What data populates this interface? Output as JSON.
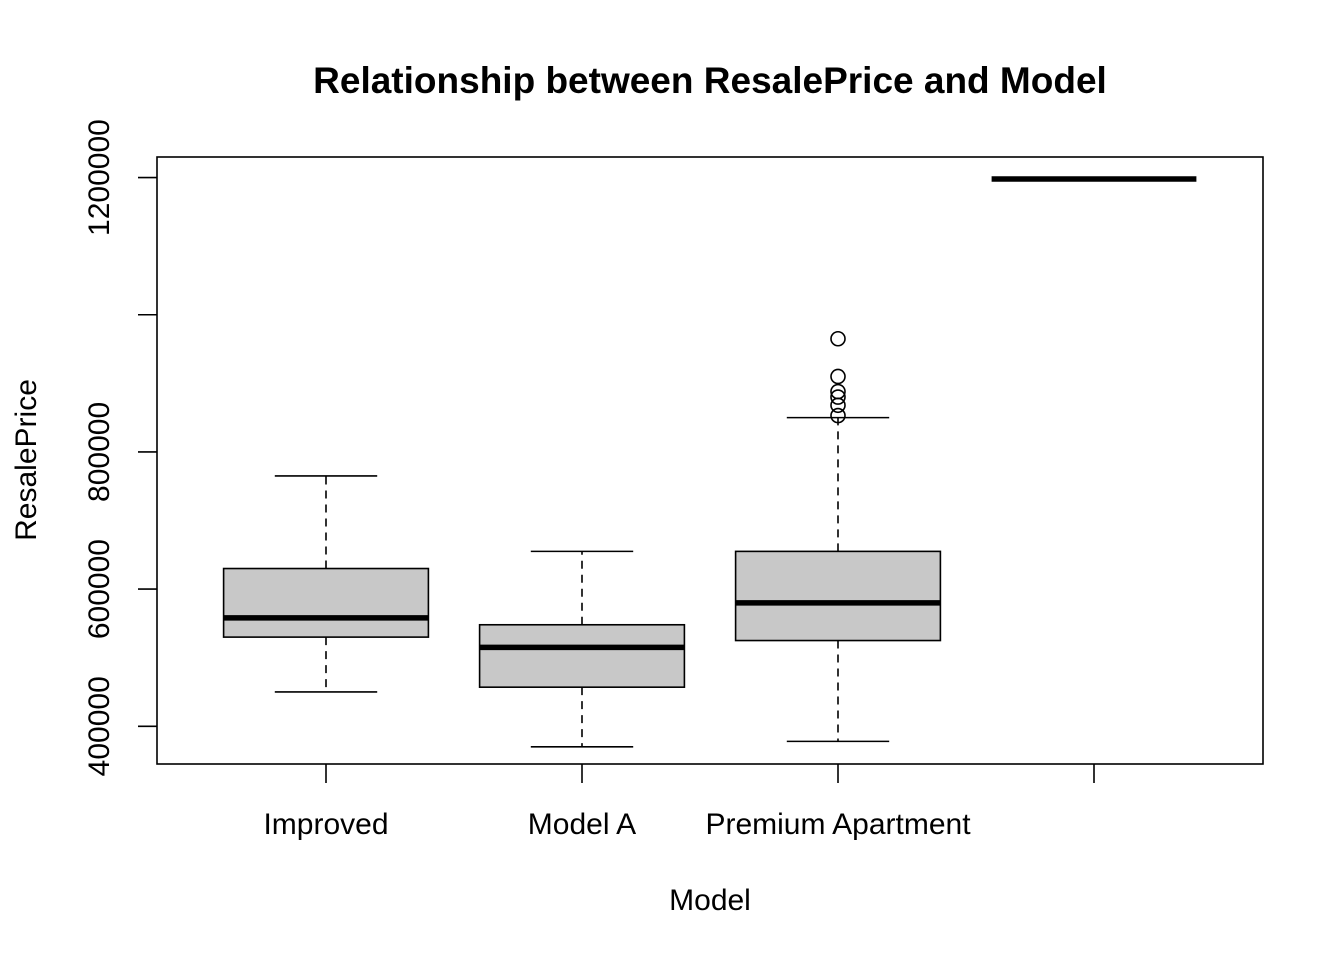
{
  "chart_data": {
    "type": "boxplot",
    "title": "Relationship between ResalePrice and Model",
    "xlabel": "Model",
    "ylabel": "ResalePrice",
    "ylim": [
      345000,
      1230000
    ],
    "y_ticks": [
      400000,
      600000,
      800000,
      1000000,
      1200000
    ],
    "y_tick_labels": [
      "400000",
      "600000",
      "800000",
      "",
      "1200000"
    ],
    "categories": [
      "Improved",
      "Model A",
      "Premium Apartment",
      ""
    ],
    "boxes": [
      {
        "category": "Improved",
        "whisker_low": 450000,
        "q1": 530000,
        "median": 558000,
        "q3": 630000,
        "whisker_high": 765000,
        "outliers": []
      },
      {
        "category": "Model A",
        "whisker_low": 370000,
        "q1": 457000,
        "median": 515000,
        "q3": 548000,
        "whisker_high": 655000,
        "outliers": []
      },
      {
        "category": "Premium Apartment",
        "whisker_low": 378000,
        "q1": 525000,
        "median": 580000,
        "q3": 655000,
        "whisker_high": 850000,
        "outliers": [
          853000,
          868000,
          880000,
          888000,
          910000,
          965000
        ]
      },
      {
        "category": "",
        "whisker_low": 1198000,
        "q1": 1198000,
        "median": 1198000,
        "q3": 1198000,
        "whisker_high": 1198000,
        "outliers": []
      }
    ],
    "colors": {
      "box_fill": "#c8c8c8",
      "line": "#000000"
    },
    "grid": false,
    "legend": "none"
  }
}
